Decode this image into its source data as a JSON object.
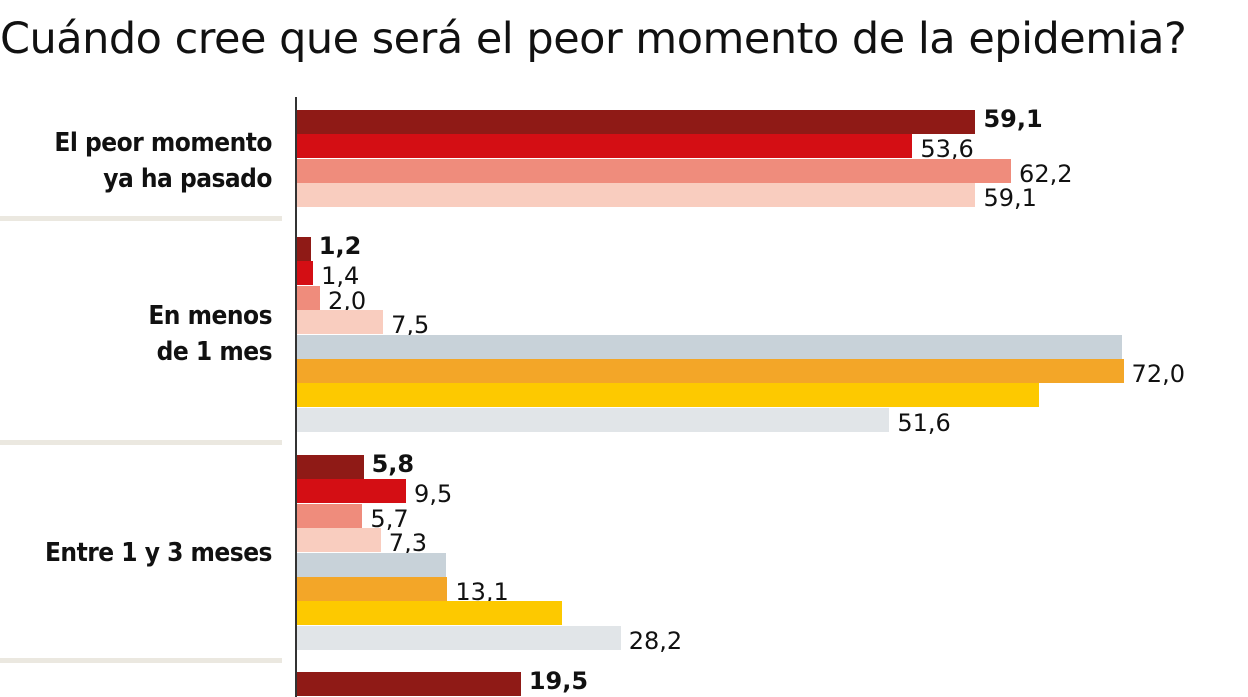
{
  "title": "Cuándo cree que será el peor momento de la epidemia?",
  "chart_data": {
    "type": "bar",
    "orientation": "horizontal",
    "title": "Cuándo cree que será el peor momento de la epidemia?",
    "series_colors": [
      "#8f1a16",
      "#d40e14",
      "#ef8c7c",
      "#f9cdbf",
      "#c8d2d9",
      "#f3a628",
      "#fdc900",
      "#e1e5e8"
    ],
    "grid": false,
    "groups": [
      {
        "category": "El peor momento ya ha pasado",
        "category_lines": [
          "El peor momento",
          "ya ha pasado"
        ],
        "values": [
          59.1,
          53.6,
          62.2,
          59.1
        ],
        "labels": [
          "59,1",
          "53,6",
          "62,2",
          "59,1"
        ]
      },
      {
        "category": "En menos de 1 mes",
        "category_lines": [
          "En menos",
          "de 1 mes"
        ],
        "values": [
          1.2,
          1.4,
          2.0,
          7.5,
          71.9,
          72.0,
          64.6,
          51.6
        ],
        "labels": [
          "1,2",
          "1,4",
          "2,0",
          "7,5",
          null,
          "72,0",
          null,
          "51,6"
        ]
      },
      {
        "category": "Entre 1 y 3 meses",
        "category_lines": [
          "Entre 1 y 3 meses"
        ],
        "values": [
          5.8,
          9.5,
          5.7,
          7.3,
          13.0,
          13.1,
          23.1,
          28.2
        ],
        "labels": [
          "5,8",
          "9,5",
          "5,7",
          "7,3",
          null,
          "13,1",
          null,
          "28,2"
        ]
      },
      {
        "category": "",
        "category_lines": [],
        "values": [
          19.5
        ],
        "labels": [
          "19,5"
        ]
      }
    ]
  }
}
